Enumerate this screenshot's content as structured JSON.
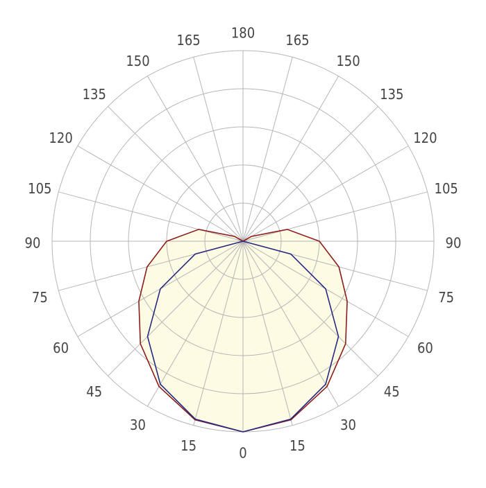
{
  "chart_data": {
    "type": "polar",
    "theta": [
      0,
      15,
      30,
      45,
      60,
      75,
      90,
      105,
      120,
      135,
      150,
      165,
      180
    ],
    "thetaticks": [
      0,
      15,
      30,
      45,
      60,
      75,
      90,
      105,
      120,
      135,
      150,
      165,
      180
    ],
    "rlim": [
      0,
      100
    ],
    "rticks": [
      20,
      40,
      60,
      80,
      100
    ],
    "grid": true,
    "fill": "#fdfbe4",
    "series": [
      {
        "color": "#8b1c1c",
        "values": [
          100,
          97,
          88,
          76,
          63,
          52,
          40,
          24,
          5,
          0,
          0,
          0,
          0
        ],
        "filled": true
      },
      {
        "color": "#27287f",
        "values": [
          100,
          96.6,
          86.6,
          70.7,
          50,
          25.9,
          0,
          0,
          0,
          0,
          0,
          0,
          0
        ]
      }
    ]
  }
}
